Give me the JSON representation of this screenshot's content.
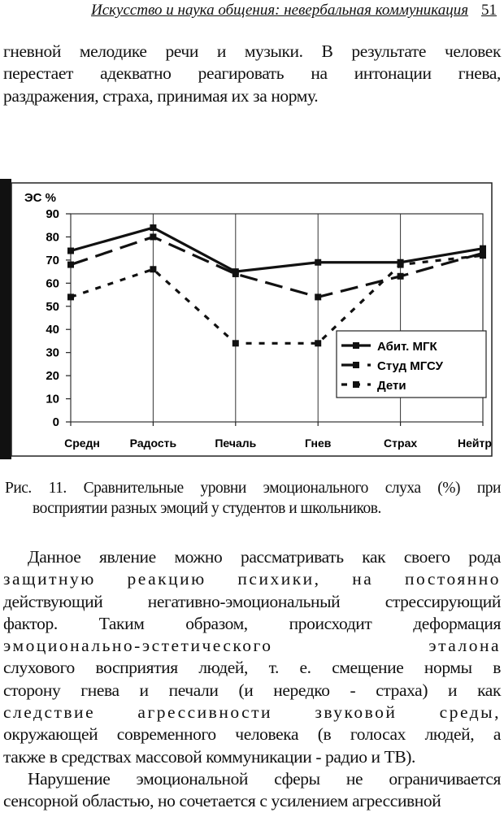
{
  "header": {
    "running_title": "Искусство и наука общения: невербальная коммуникация",
    "page_number": "51"
  },
  "paragraph1": {
    "lines": [
      "гневной мелодике речи и музыки. В результате человек",
      "перестает адекватно реагировать на интонации гнева,",
      "раздражения, страха, принимая их за норму."
    ]
  },
  "figure": {
    "caption_line1": "Рис. 11. Сравнительные уровни эмоционального слуха (%) при",
    "caption_line2": "восприятии разных эмоций у студентов и школьников."
  },
  "chart_data": {
    "type": "line",
    "title": "",
    "ylabel": "ЭС %",
    "xlabel": "",
    "ylim": [
      0,
      90
    ],
    "yticks": [
      0,
      10,
      20,
      30,
      40,
      50,
      60,
      70,
      80,
      90
    ],
    "grid": "vertical lines at categories",
    "legend_position": "lower right inside plot",
    "categories": [
      "Средн",
      "Радость",
      "Печаль",
      "Гнев",
      "Страх",
      "Нейтр"
    ],
    "series": [
      {
        "name": "Абит. МГК",
        "style": "solid",
        "values": [
          74,
          84,
          65,
          69,
          69,
          75
        ]
      },
      {
        "name": "Студ МГСУ",
        "style": "long-dash",
        "values": [
          68,
          80,
          64,
          54,
          63,
          73
        ]
      },
      {
        "name": "Дети",
        "style": "short-dash",
        "values": [
          54,
          66,
          34,
          34,
          68,
          72
        ]
      }
    ]
  },
  "paragraph2": {
    "lines": [
      "Данное явление можно рассматривать как своего рода",
      "защитную реакцию психики, на постоянно",
      "действующий негативно-эмоциональный стрессирующий",
      "фактор. Таким образом, происходит деформация",
      "эмоционально-эстетического эталона",
      "слухового восприятия людей, т. е. смещение нормы в",
      "сторону гнева и печали (и нередко - страха) и как",
      "следствие агрессивности звуковой среды,",
      "окружающей современного человека (в голосах людей, а",
      "также в средствах массовой коммуникации - радио и ТВ)."
    ]
  },
  "paragraph3": {
    "lines": [
      "Нарушение эмоциональной сферы не ограничивается",
      "сенсорной областью, но сочетается с усилением агрессивной"
    ]
  }
}
